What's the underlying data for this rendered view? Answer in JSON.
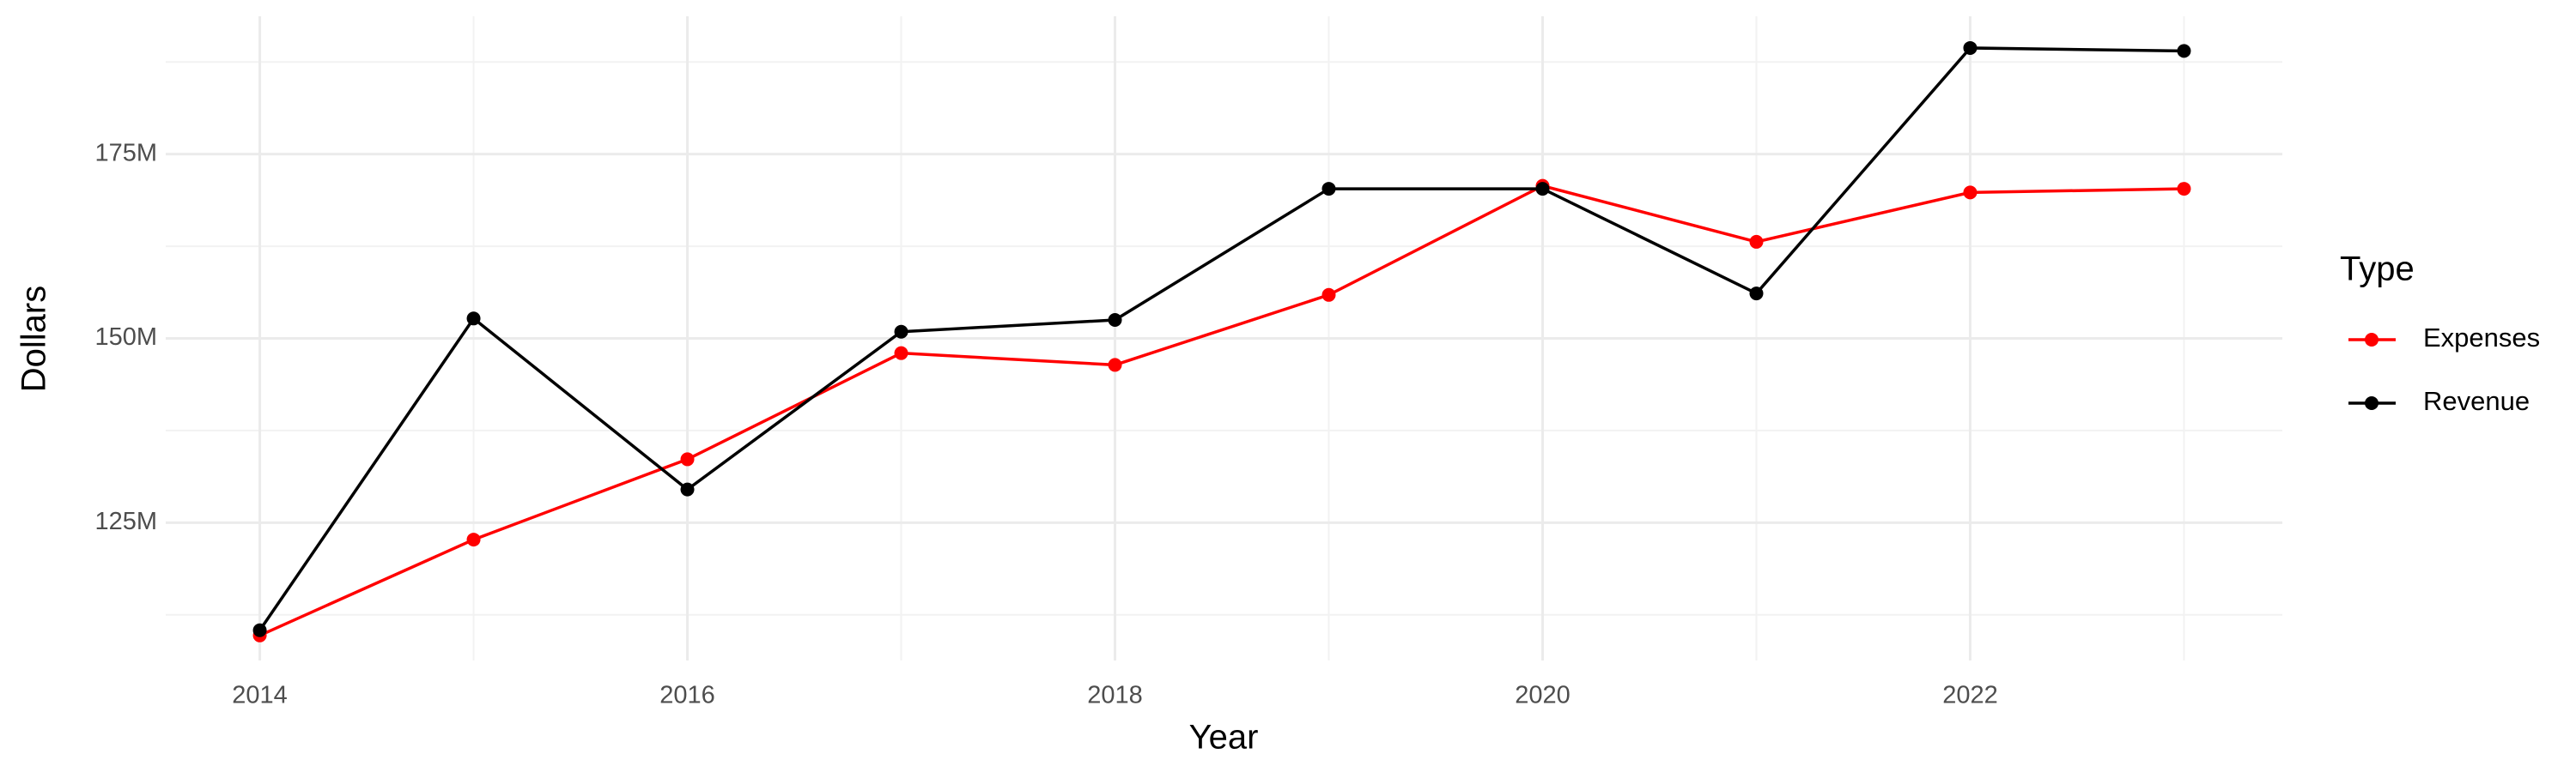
{
  "chart_data": {
    "type": "line",
    "x_label": "Year",
    "y_label": "Dollars",
    "legend_title": "Type",
    "x": [
      2014,
      2015,
      2016,
      2017,
      2018,
      2019,
      2020,
      2021,
      2022,
      2023
    ],
    "series": [
      {
        "name": "Expenses",
        "color": "#ff0000",
        "values": [
          109700000,
          122700000,
          133600000,
          148000000,
          146400000,
          155900000,
          170700000,
          163100000,
          169800000,
          170300000
        ]
      },
      {
        "name": "Revenue",
        "color": "#000000",
        "values": [
          110400000,
          152700000,
          129500000,
          150900000,
          152500000,
          170300000,
          170300000,
          156100000,
          189400000,
          189000000
        ]
      }
    ],
    "xlim": [
      2013.56,
      2023.46
    ],
    "xticks": [
      2014,
      2016,
      2018,
      2020,
      2022
    ],
    "ylim": [
      106300000,
      193700000
    ],
    "yticks": [
      {
        "value": 125000000,
        "label": "125M"
      },
      {
        "value": 150000000,
        "label": "150M"
      },
      {
        "value": 175000000,
        "label": "175M"
      }
    ],
    "grid": true,
    "legend": "right"
  }
}
